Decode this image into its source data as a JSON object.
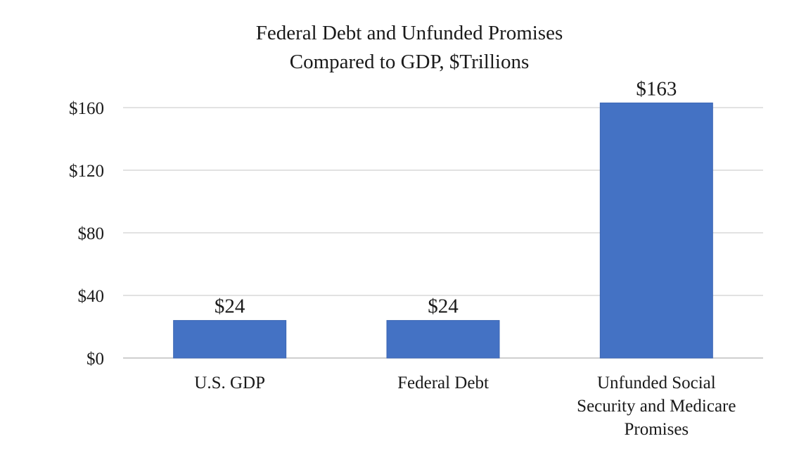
{
  "chart_data": {
    "type": "bar",
    "title_lines": [
      "Federal Debt and Unfunded Promises",
      "Compared to GDP, $Trillions"
    ],
    "categories": [
      [
        "U.S. GDP"
      ],
      [
        "Federal Debt"
      ],
      [
        "Unfunded Social",
        "Security and Medicare",
        "Promises"
      ]
    ],
    "values": [
      24,
      24,
      163
    ],
    "data_labels": [
      "$24",
      "$24",
      "$163"
    ],
    "y_ticks": [
      0,
      40,
      80,
      120,
      160
    ],
    "y_tick_labels": [
      "$0",
      "$40",
      "$80",
      "$120",
      "$160"
    ],
    "ylim": [
      0,
      160
    ],
    "grid": true,
    "legend": "none",
    "colors": {
      "bar": "#4472c4",
      "bar_stroke": "#3b65b3",
      "grid": "#d9d9d9",
      "axis": "#bfbfbf"
    }
  }
}
